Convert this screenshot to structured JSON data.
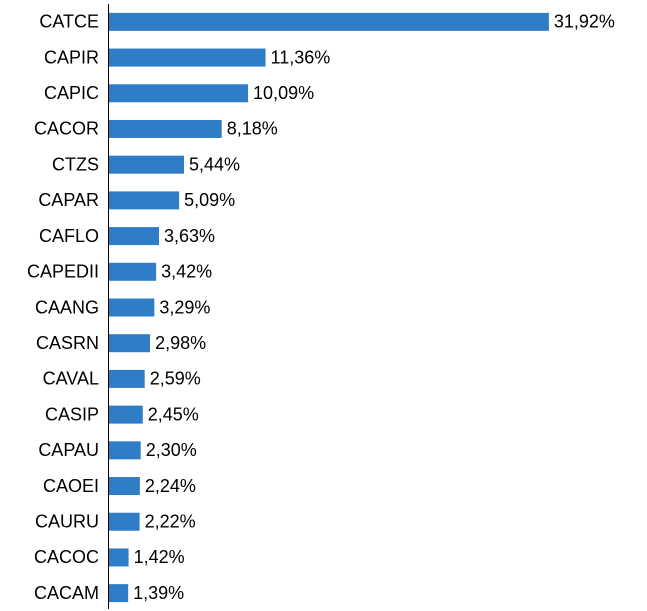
{
  "chart_data": {
    "type": "bar",
    "orientation": "horizontal",
    "categories": [
      "CATCE",
      "CAPIR",
      "CAPIC",
      "CACOR",
      "CTZS",
      "CAPAR",
      "CAFLO",
      "CAPEDII",
      "CAANG",
      "CASRN",
      "CAVAL",
      "CASIP",
      "CAPAU",
      "CAOEI",
      "CAURU",
      "CACOC",
      "CACAM"
    ],
    "values": [
      31.92,
      11.36,
      10.09,
      8.18,
      5.44,
      5.09,
      3.63,
      3.42,
      3.29,
      2.98,
      2.59,
      2.45,
      2.3,
      2.24,
      2.22,
      1.42,
      1.39
    ],
    "value_labels": [
      "31,92%",
      "11,36%",
      "10,09%",
      "8,18%",
      "5,44%",
      "5,09%",
      "3,63%",
      "3,42%",
      "3,29%",
      "2,98%",
      "2,59%",
      "2,45%",
      "2,30%",
      "2,24%",
      "2,22%",
      "1,42%",
      "1,39%"
    ],
    "color": "#2e7dc6",
    "xlim": [
      0,
      32
    ]
  }
}
